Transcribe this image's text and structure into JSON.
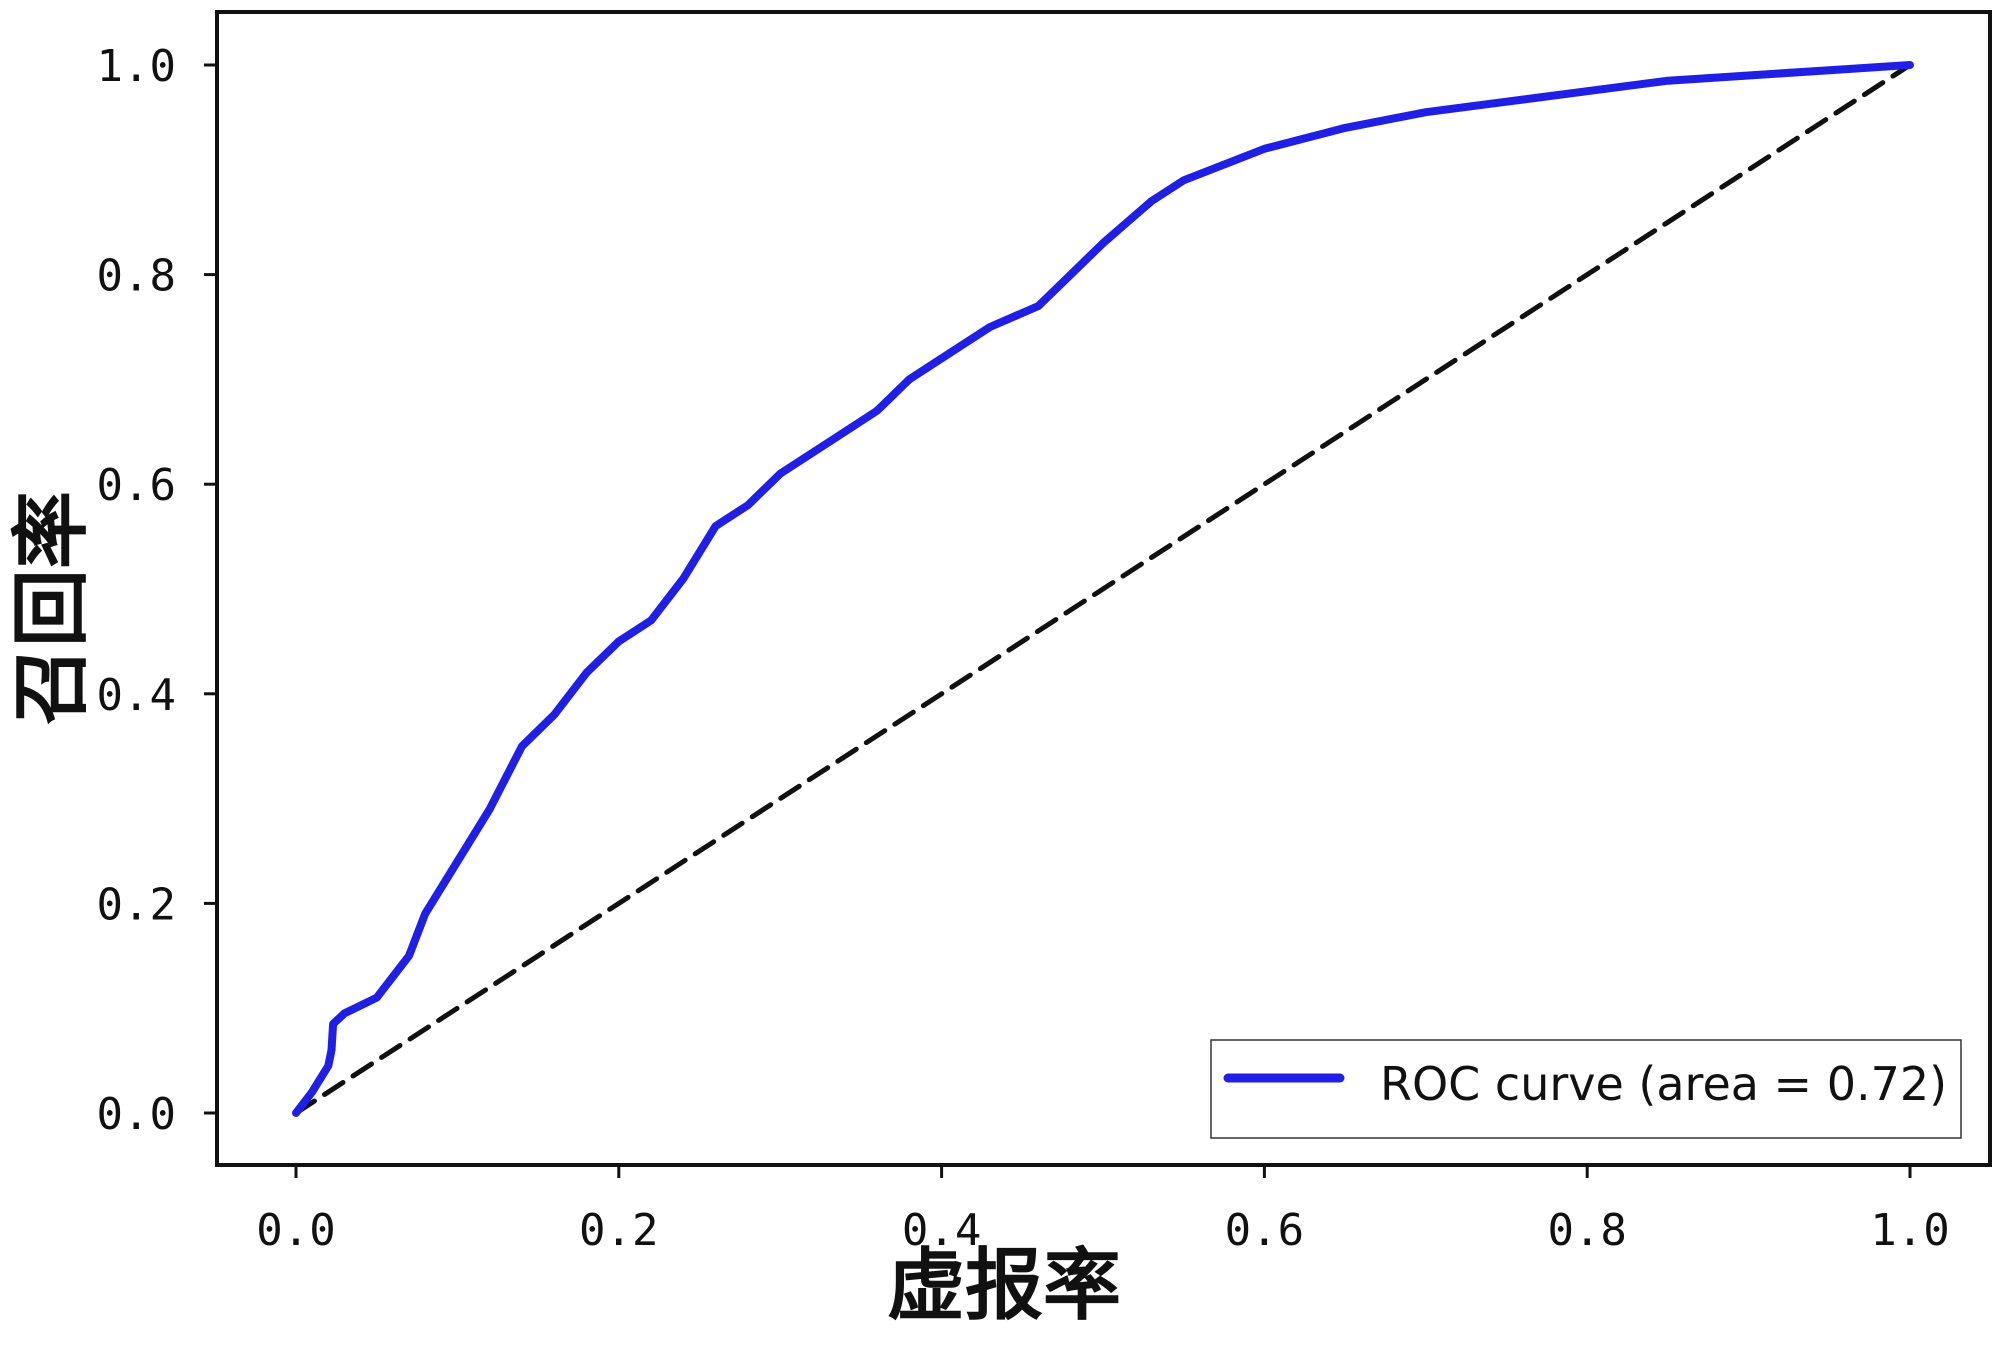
{
  "chart_data": {
    "type": "line",
    "title": "",
    "xlabel": "虚报率",
    "ylabel": "召回率",
    "xlim": [
      -0.05,
      1.05
    ],
    "ylim": [
      -0.05,
      1.05
    ],
    "xticks": [
      "0.0",
      "0.2",
      "0.4",
      "0.6",
      "0.8",
      "1.0"
    ],
    "yticks": [
      "0.0",
      "0.2",
      "0.4",
      "0.6",
      "0.8",
      "1.0"
    ],
    "grid": false,
    "legend_position": "lower-right",
    "series": [
      {
        "name": "ROC curve (area = 0.72)",
        "color": "#1f1fe6",
        "style": "solid",
        "x": [
          0.0,
          0.01,
          0.02,
          0.022,
          0.023,
          0.03,
          0.05,
          0.07,
          0.08,
          0.1,
          0.12,
          0.14,
          0.16,
          0.18,
          0.2,
          0.22,
          0.24,
          0.26,
          0.28,
          0.3,
          0.33,
          0.36,
          0.38,
          0.4,
          0.43,
          0.46,
          0.48,
          0.5,
          0.53,
          0.55,
          0.6,
          0.65,
          0.7,
          0.75,
          0.8,
          0.85,
          0.9,
          0.95,
          1.0
        ],
        "y": [
          0.0,
          0.02,
          0.045,
          0.06,
          0.085,
          0.095,
          0.11,
          0.15,
          0.19,
          0.24,
          0.29,
          0.35,
          0.38,
          0.42,
          0.45,
          0.47,
          0.51,
          0.56,
          0.58,
          0.61,
          0.64,
          0.67,
          0.7,
          0.72,
          0.75,
          0.77,
          0.8,
          0.83,
          0.87,
          0.89,
          0.92,
          0.94,
          0.955,
          0.965,
          0.975,
          0.985,
          0.99,
          0.995,
          1.0
        ]
      },
      {
        "name": "",
        "color": "#111111",
        "style": "dashed",
        "x": [
          0.0,
          1.0
        ],
        "y": [
          0.0,
          1.0
        ]
      }
    ]
  }
}
